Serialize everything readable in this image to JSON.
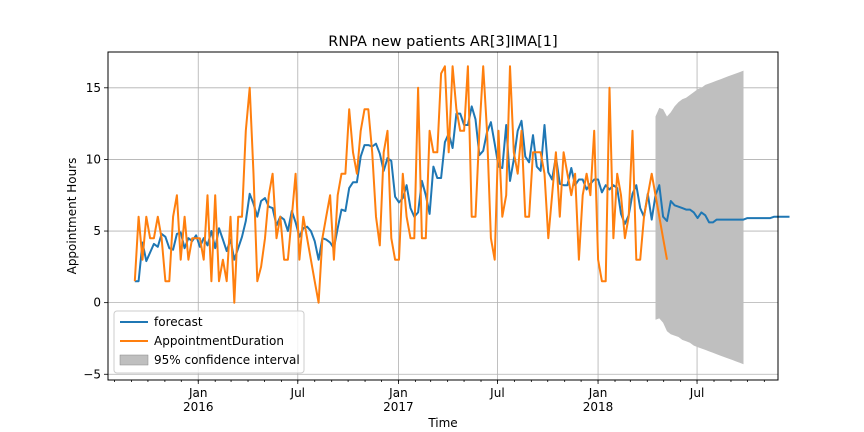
{
  "chart_data": {
    "type": "line",
    "title": "RNPA new patients AR[3]IMA[1]",
    "xlabel": "Time",
    "ylabel": "Appointment Hours",
    "ylim": [
      -5.4,
      17.5
    ],
    "xlim": [
      "2015-07-20",
      "2018-11-26"
    ],
    "grid": true,
    "legend_position": "lower-left",
    "y_ticks": [
      -5,
      0,
      5,
      10,
      15
    ],
    "x_ticks": [
      {
        "date": "2016-01-01",
        "label": "Jan",
        "sublabel": "2016"
      },
      {
        "date": "2016-07-01",
        "label": "Jul",
        "sublabel": ""
      },
      {
        "date": "2017-01-01",
        "label": "Jan",
        "sublabel": "2017"
      },
      {
        "date": "2017-07-01",
        "label": "Jul",
        "sublabel": ""
      },
      {
        "date": "2018-01-01",
        "label": "Jan",
        "sublabel": "2018"
      },
      {
        "date": "2018-07-01",
        "label": "Jul",
        "sublabel": ""
      }
    ],
    "series": [
      {
        "name": "forecast",
        "color": "#1f77b4",
        "start": "2015-09-07",
        "step_days": 7,
        "values": [
          1.5,
          1.5,
          4.2,
          2.9,
          3.5,
          4.1,
          3.9,
          4.8,
          4.6,
          3.8,
          3.7,
          4.8,
          4.9,
          3.8,
          4.5,
          4.3,
          4.7,
          3.9,
          4.5,
          4.0,
          5.0,
          3.8,
          5.2,
          4.4,
          3.6,
          4.4,
          3.0,
          3.8,
          4.6,
          5.7,
          7.6,
          6.9,
          6.0,
          7.1,
          7.3,
          6.7,
          6.6,
          5.4,
          6.0,
          5.8,
          5.0,
          6.4,
          5.6,
          4.6,
          5.2,
          5.3,
          5.0,
          4.3,
          3.0,
          4.5,
          4.4,
          4.2,
          3.8,
          5.2,
          6.5,
          6.4,
          8.0,
          8.4,
          8.4,
          10.2,
          11.0,
          11.0,
          10.9,
          11.1,
          10.4,
          9.2,
          10.1,
          9.9,
          7.4,
          7.0,
          7.3,
          8.2,
          6.6,
          6.0,
          6.3,
          8.5,
          7.5,
          6.2,
          9.5,
          8.7,
          8.7,
          11.2,
          11.8,
          10.8,
          13.2,
          13.2,
          12.4,
          12.4,
          13.7,
          12.8,
          10.3,
          10.6,
          11.9,
          12.6,
          11.1,
          9.5,
          9.4,
          12.4,
          8.5,
          10.0,
          12.0,
          12.7,
          10.2,
          9.8,
          11.7,
          9.5,
          9.2,
          12.4,
          9.1,
          8.6,
          10.2,
          8.3,
          8.2,
          8.2,
          9.4,
          8.2,
          8.6,
          8.6,
          7.9,
          8.3,
          8.6,
          8.6,
          7.7,
          8.2,
          7.9,
          8.2,
          8.0,
          6.2,
          5.5,
          6.1,
          7.6,
          8.2,
          6.6,
          6.0,
          7.6,
          5.8,
          7.5,
          8.2,
          6.0,
          5.7,
          7.1,
          6.8,
          6.7,
          6.6,
          6.5,
          6.5,
          6.3,
          5.9,
          6.3,
          6.1,
          5.6,
          5.6,
          5.8,
          5.8,
          5.8,
          5.8,
          5.8,
          5.8,
          5.8,
          5.8,
          5.9,
          5.9,
          5.9,
          5.9,
          5.9,
          5.9,
          5.9,
          6.0,
          6.0,
          6.0,
          6.0,
          6.0
        ]
      },
      {
        "name": "AppointmentDuration",
        "color": "#ff7f0e",
        "start": "2015-09-07",
        "step_days": 7,
        "values": [
          1.5,
          6.0,
          3.0,
          6.0,
          4.5,
          4.5,
          6.0,
          4.5,
          1.5,
          1.5,
          6.0,
          7.5,
          3.0,
          6.0,
          3.0,
          4.5,
          4.5,
          4.5,
          3.0,
          7.5,
          1.5,
          7.5,
          1.5,
          3.0,
          1.5,
          6.0,
          0.0,
          6.0,
          6.0,
          12.0,
          15.0,
          9.0,
          1.5,
          2.5,
          4.5,
          7.5,
          9.0,
          4.5,
          6.0,
          3.0,
          3.0,
          6.0,
          9.0,
          3.0,
          6.0,
          4.5,
          3.0,
          1.5,
          0.0,
          4.5,
          6.0,
          7.5,
          3.0,
          7.5,
          9.0,
          9.0,
          13.5,
          10.5,
          9.0,
          12.0,
          13.5,
          13.5,
          10.5,
          6.0,
          4.0,
          10.5,
          12.0,
          4.5,
          3.0,
          3.0,
          9.0,
          6.0,
          4.5,
          4.5,
          15.0,
          4.5,
          4.5,
          12.0,
          10.5,
          10.5,
          16.0,
          16.5,
          10.5,
          16.5,
          13.5,
          12.0,
          12.0,
          16.5,
          6.0,
          6.0,
          12.0,
          16.5,
          12.0,
          4.5,
          3.0,
          12.0,
          6.0,
          7.5,
          16.5,
          10.5,
          9.0,
          12.0,
          6.0,
          6.0,
          10.5,
          10.5,
          10.5,
          9.0,
          4.5,
          7.5,
          10.5,
          6.0,
          10.5,
          9.0,
          7.5,
          9.0,
          3.0,
          7.5,
          9.0,
          7.5,
          12.0,
          3.0,
          1.5,
          1.5,
          15.0,
          4.5,
          9.0,
          7.5,
          4.5,
          6.0,
          12.0,
          3.0,
          3.0,
          6.0,
          7.5,
          9.0,
          7.5,
          6.0,
          4.5,
          3.0
        ]
      }
    ],
    "confidence_interval": {
      "name": "95% confidence interval",
      "color": "#bfbfbf",
      "start": "2018-04-16",
      "step_days": 7,
      "upper": [
        13.0,
        13.6,
        13.5,
        13.0,
        13.3,
        13.7,
        14.0,
        14.2,
        14.3,
        14.5,
        14.7,
        14.9,
        15.0,
        15.2,
        15.3,
        15.4,
        15.5,
        15.6,
        15.7,
        15.8,
        15.9,
        16.0,
        16.1,
        16.2
      ],
      "lower": [
        -1.2,
        -1.1,
        -1.4,
        -2.0,
        -2.2,
        -2.3,
        -2.4,
        -2.6,
        -2.7,
        -2.8,
        -3.0,
        -3.1,
        -3.2,
        -3.3,
        -3.4,
        -3.5,
        -3.6,
        -3.7,
        -3.8,
        -3.9,
        -4.0,
        -4.1,
        -4.2,
        -4.3
      ]
    }
  }
}
